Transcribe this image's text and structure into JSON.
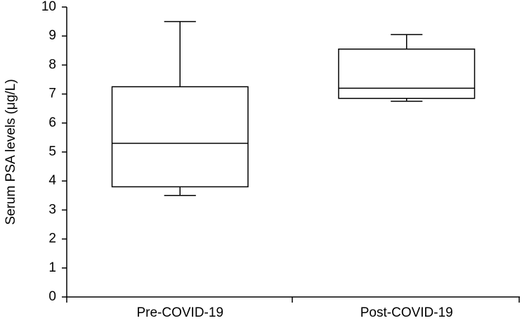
{
  "chart_data": {
    "type": "box",
    "y_label": "Serum PSA levels (μg/L)",
    "categories": [
      "Pre-COVID-19",
      "Post-COVID-19"
    ],
    "min": [
      3.5,
      6.75
    ],
    "q1": [
      3.8,
      6.85
    ],
    "median": [
      5.3,
      7.2
    ],
    "q3": [
      7.25,
      8.55
    ],
    "max": [
      9.5,
      9.05
    ],
    "color": "#000000",
    "ylim": [
      0,
      10
    ],
    "yticks": [
      0,
      1,
      2,
      3,
      4,
      5,
      6,
      7,
      8,
      9,
      10
    ]
  }
}
